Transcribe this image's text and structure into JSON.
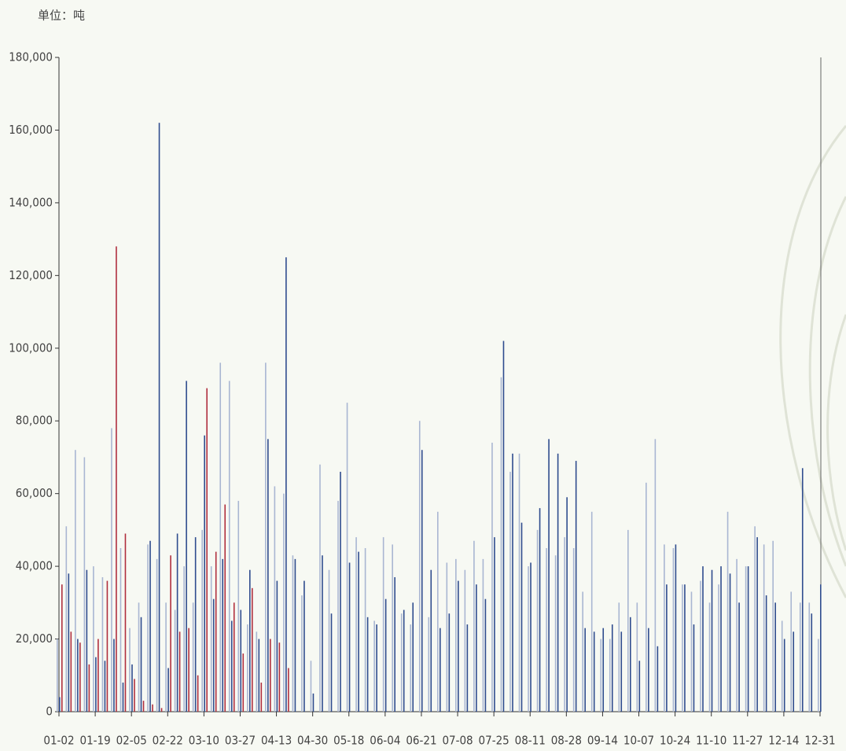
{
  "chart_data": {
    "type": "bar",
    "y_label": "单位：吨",
    "categories": [
      "01-02",
      null,
      null,
      null,
      "01-19",
      null,
      null,
      null,
      "02-05",
      null,
      null,
      null,
      "02-22",
      null,
      null,
      null,
      "03-10",
      null,
      null,
      null,
      "03-27",
      null,
      null,
      null,
      "04-13",
      null,
      null,
      null,
      "04-30",
      null,
      null,
      null,
      "05-18",
      null,
      null,
      null,
      "06-04",
      null,
      null,
      null,
      "06-21",
      null,
      null,
      null,
      "07-08",
      null,
      null,
      null,
      "07-25",
      null,
      null,
      null,
      "08-11",
      null,
      null,
      null,
      "08-28",
      null,
      null,
      null,
      "09-14",
      null,
      null,
      null,
      "10-07",
      null,
      null,
      null,
      "10-24",
      null,
      null,
      null,
      "11-10",
      null,
      null,
      null,
      "11-27",
      null,
      null,
      null,
      "12-14",
      null,
      null,
      null,
      "12-31"
    ],
    "series": [
      {
        "color": "#a9b6d2",
        "values": [
          20000,
          51000,
          72000,
          70000,
          40000,
          37000,
          78000,
          45000,
          23000,
          30000,
          46000,
          42000,
          30000,
          28000,
          40000,
          30000,
          50000,
          40000,
          96000,
          91000,
          58000,
          24000,
          22000,
          96000,
          62000,
          60000,
          43000,
          32000,
          14000,
          68000,
          39000,
          58000,
          85000,
          48000,
          45000,
          25000,
          48000,
          46000,
          27000,
          24000,
          80000,
          26000,
          55000,
          41000,
          42000,
          39000,
          47000,
          42000,
          74000,
          92000,
          66000,
          71000,
          40000,
          50000,
          45000,
          43000,
          48000,
          45000,
          33000,
          55000,
          20000,
          20000,
          30000,
          50000,
          30000,
          63000,
          75000,
          46000,
          45000,
          35000,
          33000,
          36000,
          30000,
          35000,
          55000,
          42000,
          40000,
          51000,
          46000,
          47000,
          25000,
          33000,
          30000,
          30000,
          20000
        ]
      },
      {
        "color": "#2f4c8e",
        "values": [
          4000,
          38000,
          20000,
          39000,
          15000,
          14000,
          20000,
          8000,
          13000,
          26000,
          47000,
          162000,
          12000,
          49000,
          91000,
          48000,
          76000,
          31000,
          42000,
          25000,
          28000,
          39000,
          20000,
          75000,
          36000,
          125000,
          42000,
          36000,
          5000,
          43000,
          27000,
          66000,
          41000,
          44000,
          26000,
          24000,
          31000,
          37000,
          28000,
          30000,
          72000,
          39000,
          23000,
          27000,
          36000,
          24000,
          35000,
          31000,
          48000,
          102000,
          71000,
          52000,
          41000,
          56000,
          75000,
          71000,
          59000,
          69000,
          23000,
          22000,
          23000,
          24000,
          22000,
          26000,
          14000,
          23000,
          18000,
          35000,
          46000,
          35000,
          24000,
          40000,
          39000,
          40000,
          38000,
          30000,
          40000,
          48000,
          32000,
          30000,
          20000,
          22000,
          67000,
          27000,
          35000
        ]
      },
      {
        "color": "#b02f3e",
        "values": [
          35000,
          22000,
          19000,
          13000,
          20000,
          36000,
          128000,
          49000,
          9000,
          3000,
          2000,
          1000,
          43000,
          22000,
          23000,
          10000,
          89000,
          44000,
          57000,
          30000,
          16000,
          34000,
          8000,
          20000,
          19000,
          12000,
          null,
          null,
          null,
          null,
          null,
          null,
          null,
          null,
          null,
          null,
          null,
          null,
          null,
          null,
          null,
          null,
          null,
          null,
          null,
          null,
          null,
          null,
          null,
          null,
          null,
          null,
          null,
          null,
          null,
          null,
          null,
          null,
          null,
          null,
          null,
          null,
          null,
          null,
          null,
          null,
          null,
          null,
          null,
          null,
          null,
          null,
          null,
          null,
          null,
          null,
          null,
          null,
          null,
          null,
          null,
          null,
          null,
          null,
          null
        ]
      }
    ],
    "ylim": [
      0,
      180000
    ],
    "yticks": [
      0,
      {
        "value": 20000,
        "label": "20,000"
      },
      {
        "value": 40000,
        "label": "40,000"
      },
      {
        "value": 60000,
        "label": "60,000"
      },
      {
        "value": 80000,
        "label": "80,000"
      },
      {
        "value": 100000,
        "label": "100,000"
      },
      {
        "value": 120000,
        "label": "120,000"
      },
      {
        "value": 140000,
        "label": "140,000"
      },
      {
        "value": 160000,
        "label": "160,000"
      },
      {
        "value": 180000,
        "label": "180,000"
      }
    ]
  }
}
